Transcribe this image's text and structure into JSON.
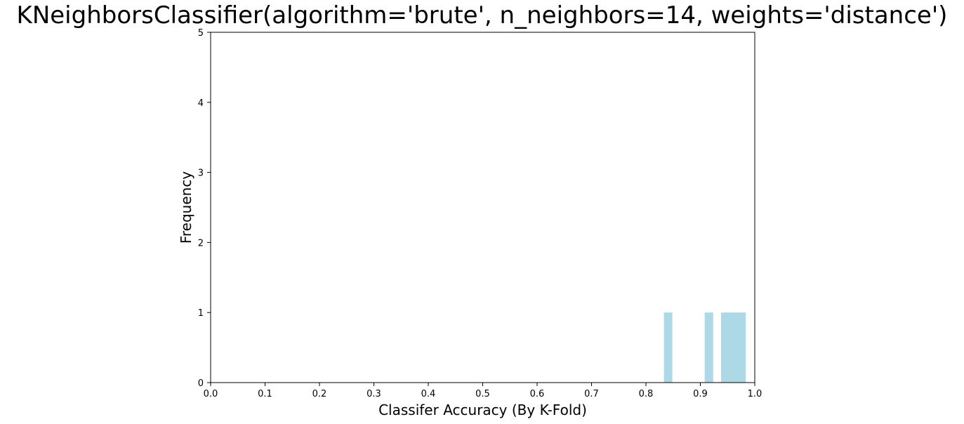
{
  "chart_data": {
    "type": "bar",
    "title": "KNeighborsClassifier(algorithm='brute', n_neighbors=14, weights='distance')",
    "xlabel": "Classifer Accuracy (By K-Fold)",
    "ylabel": "Frequency",
    "xlim": [
      0.0,
      1.0
    ],
    "ylim": [
      0,
      5
    ],
    "xticks": [
      "0.0",
      "0.1",
      "0.2",
      "0.3",
      "0.4",
      "0.5",
      "0.6",
      "0.7",
      "0.8",
      "0.9",
      "1.0"
    ],
    "yticks": [
      "0",
      "1",
      "2",
      "3",
      "4",
      "5"
    ],
    "bar_color": "#add8e6",
    "grid": false,
    "bins": [
      {
        "start": 0.833,
        "end": 0.848,
        "count": 1
      },
      {
        "start": 0.908,
        "end": 0.923,
        "count": 1
      },
      {
        "start": 0.938,
        "end": 0.953,
        "count": 1
      },
      {
        "start": 0.953,
        "end": 0.968,
        "count": 1
      },
      {
        "start": 0.968,
        "end": 0.983,
        "count": 1
      }
    ]
  }
}
